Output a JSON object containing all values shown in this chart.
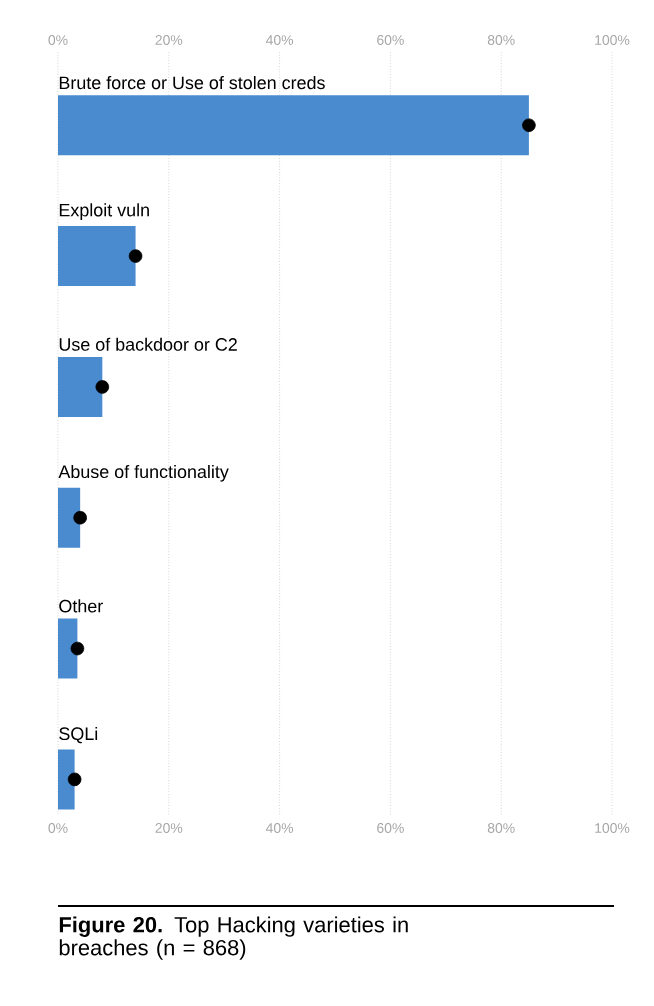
{
  "chart_data": {
    "type": "bar",
    "orientation": "horizontal",
    "title": "**Figure 20.** Top Hacking varieties in breaches (n = 868)",
    "categories": [
      "Brute force or Use of stolen creds",
      "Exploit vuln",
      "Use of backdoor or C2",
      "Abuse of functionality",
      "Other",
      "SQLi"
    ],
    "series": [
      {
        "color": "#4a8bd0",
        "values": [
          85,
          14,
          8,
          4,
          3.5,
          3
        ]
      },
      {
        "type": "scatter",
        "color": "#000000",
        "x": [
          "Brute force or Use of stolen creds",
          "Exploit vuln",
          "Use of backdoor or C2",
          "Abuse of functionality",
          "Other",
          "SQLi"
        ],
        "values": [
          85,
          14,
          8,
          4,
          3.5,
          3
        ]
      }
    ],
    "xlim": [
      0,
      100
    ],
    "xticks": [
      {
        "value": 0,
        "label": "0%"
      },
      {
        "value": 20,
        "label": "20%"
      },
      {
        "value": 40,
        "label": "40%"
      },
      {
        "value": 60,
        "label": "60%"
      },
      {
        "value": 80,
        "label": "80%"
      },
      {
        "value": 100,
        "label": "100%"
      }
    ],
    "x2lim": [
      0,
      100
    ],
    "x2ticks": [
      {
        "value": 0,
        "label": "0%"
      },
      {
        "value": 20,
        "label": "20%"
      },
      {
        "value": 40,
        "label": "40%"
      },
      {
        "value": 60,
        "label": "60%"
      },
      {
        "value": 80,
        "label": "80%"
      },
      {
        "value": 100,
        "label": "100%"
      }
    ],
    "grid": "x",
    "marker": "circle"
  }
}
